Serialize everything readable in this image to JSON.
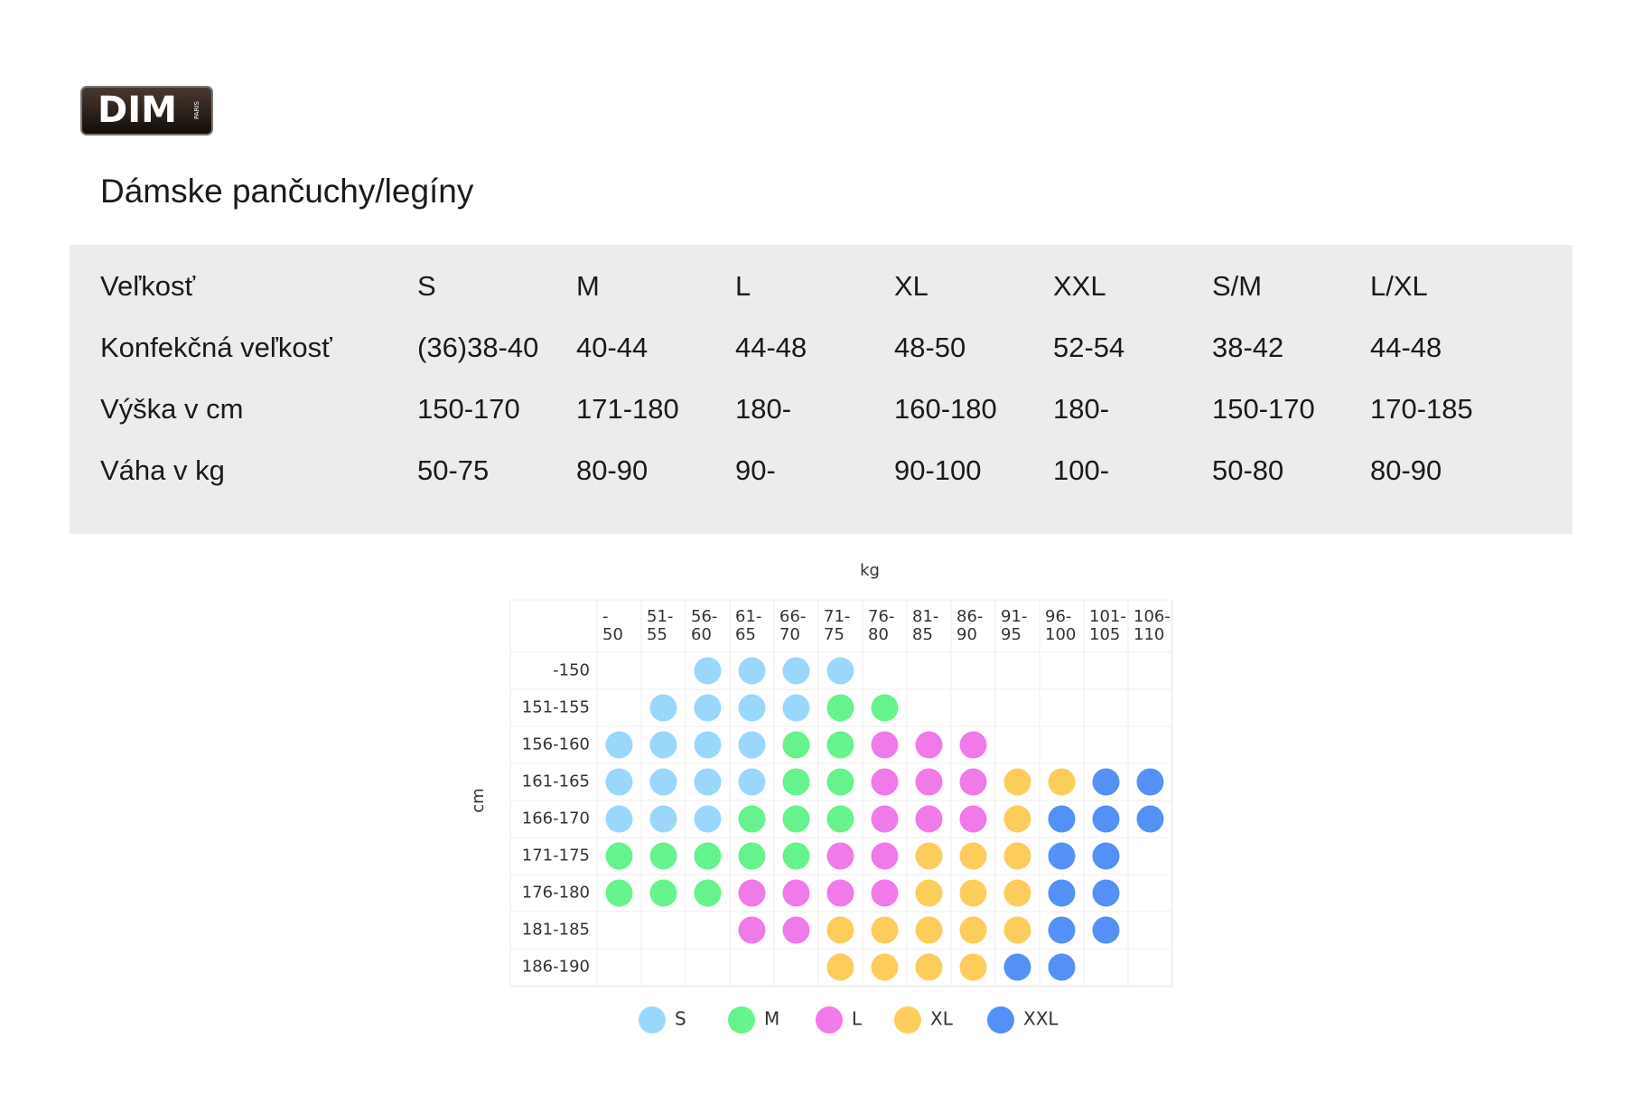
{
  "logo": {
    "text": "DIM",
    "subtext": "PARIS"
  },
  "title": "Dámske pančuchy/legíny",
  "table": {
    "rows": [
      [
        "Veľkosť",
        "S",
        "M",
        "L",
        "XL",
        "XXL",
        "S/M",
        "L/XL"
      ],
      [
        "Konfekčná veľkosť",
        "(36)38-40",
        "40-44",
        "44-48",
        "48-50",
        "52-54",
        "38-42",
        "44-48"
      ],
      [
        "Výška v cm",
        "150-170",
        "171-180",
        "180-",
        "160-180",
        "180-",
        "150-170",
        "170-185"
      ],
      [
        "Váha v kg",
        "50-75",
        "80-90",
        "90-",
        "90-100",
        "100-",
        "50-80",
        "80-90"
      ]
    ]
  },
  "matrix": {
    "x_label": "kg",
    "y_label": "cm",
    "columns": [
      [
        "-",
        "50"
      ],
      [
        "51-",
        "55"
      ],
      [
        "56-",
        "60"
      ],
      [
        "61-",
        "65"
      ],
      [
        "66-",
        "70"
      ],
      [
        "71-",
        "75"
      ],
      [
        "76-",
        "80"
      ],
      [
        "81-",
        "85"
      ],
      [
        "86-",
        "90"
      ],
      [
        "91-",
        "95"
      ],
      [
        "96-",
        "100"
      ],
      [
        "101-",
        "105"
      ],
      [
        "106-",
        "110"
      ]
    ],
    "rows": [
      "-150",
      "151-155",
      "156-160",
      "161-165",
      "166-170",
      "171-175",
      "176-180",
      "181-185",
      "186-190"
    ],
    "cells": [
      [
        null,
        null,
        "S",
        "S",
        "S",
        "S",
        null,
        null,
        null,
        null,
        null,
        null,
        null
      ],
      [
        null,
        "S",
        "S",
        "S",
        "S",
        "M",
        "M",
        null,
        null,
        null,
        null,
        null,
        null
      ],
      [
        "S",
        "S",
        "S",
        "S",
        "M",
        "M",
        "L",
        "L",
        "L",
        null,
        null,
        null,
        null
      ],
      [
        "S",
        "S",
        "S",
        "S",
        "M",
        "M",
        "L",
        "L",
        "L",
        "XL",
        "XL",
        "XXL",
        "XXL"
      ],
      [
        "S",
        "S",
        "S",
        "M",
        "M",
        "M",
        "L",
        "L",
        "L",
        "XL",
        "XXL",
        "XXL",
        "XXL"
      ],
      [
        "M",
        "M",
        "M",
        "M",
        "M",
        "L",
        "L",
        "XL",
        "XL",
        "XL",
        "XXL",
        "XXL",
        null
      ],
      [
        "M",
        "M",
        "M",
        "L",
        "L",
        "L",
        "L",
        "XL",
        "XL",
        "XL",
        "XXL",
        "XXL",
        null
      ],
      [
        null,
        null,
        null,
        "L",
        "L",
        "XL",
        "XL",
        "XL",
        "XL",
        "XL",
        "XXL",
        "XXL",
        null
      ],
      [
        null,
        null,
        null,
        null,
        null,
        "XL",
        "XL",
        "XL",
        "XL",
        "XXL",
        "XXL",
        null,
        null
      ]
    ],
    "legend": [
      {
        "name": "S",
        "color": "#9bd7fb"
      },
      {
        "name": "M",
        "color": "#66f28c"
      },
      {
        "name": "L",
        "color": "#f07ae8"
      },
      {
        "name": "XL",
        "color": "#fdcd5c"
      },
      {
        "name": "XXL",
        "color": "#5490f6"
      }
    ]
  }
}
